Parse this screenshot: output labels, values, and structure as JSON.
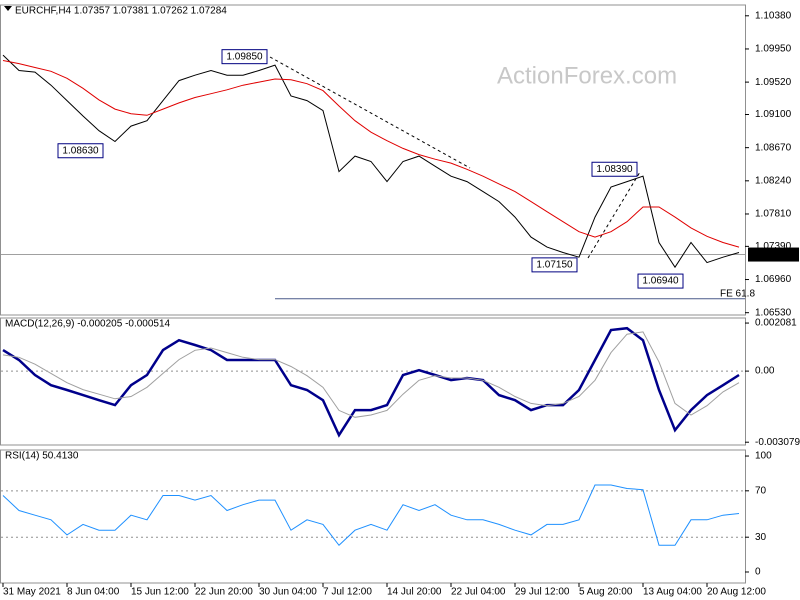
{
  "chart_data": [
    {
      "type": "line",
      "title": "EURCHF,H4  1.07357 1.07381 1.07262 1.07284",
      "watermark": "ActionForex.com",
      "categories": [
        "31 May 2021",
        null,
        null,
        null,
        "8 Jun 04:00",
        null,
        null,
        null,
        "15 Jun 12:00",
        null,
        null,
        null,
        "22 Jun 20:00",
        null,
        null,
        null,
        "30 Jun 04:00",
        null,
        null,
        null,
        "7 Jul 12:00",
        null,
        null,
        null,
        "14 Jul 20:00",
        null,
        null,
        null,
        "22 Jul 04:00",
        null,
        null,
        null,
        "29 Jul 12:00",
        null,
        null,
        null,
        "5 Aug 20:00",
        null,
        null,
        null,
        "13 Aug 04:00",
        null,
        null,
        null,
        "20 Aug 12:00",
        null,
        null
      ],
      "ylim": [
        1.065,
        1.1052
      ],
      "yticks": [
        {
          "value": 1.0653,
          "label": "1.06530"
        },
        {
          "value": 1.0696,
          "label": "1.06960"
        },
        {
          "value": 1.0739,
          "label": "1.07390"
        },
        {
          "value": 1.0781,
          "label": "1.07810"
        },
        {
          "value": 1.0824,
          "label": "1.08240"
        },
        {
          "value": 1.0867,
          "label": "1.08670"
        },
        {
          "value": 1.091,
          "label": "1.09100"
        },
        {
          "value": 1.0952,
          "label": "1.09520"
        },
        {
          "value": 1.0995,
          "label": "1.09950"
        },
        {
          "value": 1.1038,
          "label": "1.10380"
        }
      ],
      "series": [
        {
          "color": "#000000",
          "values": [
            1.0987,
            1.0967,
            1.0965,
            1.0948,
            1.0928,
            1.0908,
            1.0889,
            1.0875,
            1.0895,
            1.0902,
            1.0928,
            1.0954,
            1.0961,
            1.0967,
            1.0961,
            1.0961,
            1.0967,
            1.0974,
            1.0934,
            1.0928,
            1.0915,
            1.0836,
            1.0856,
            1.0849,
            1.0823,
            1.0849,
            1.0856,
            1.0843,
            1.083,
            1.0823,
            1.081,
            1.0797,
            1.0777,
            1.0751,
            1.0738,
            1.0731,
            1.0725,
            1.0777,
            1.0816,
            1.0823,
            1.083,
            1.0744,
            1.0712,
            1.0744,
            1.0718,
            1.0725,
            1.0731
          ]
        },
        {
          "color": "#e00000",
          "values": [
            1.098,
            1.0976,
            1.0971,
            1.0966,
            1.0957,
            1.0944,
            1.0929,
            1.0917,
            1.0911,
            1.0909,
            1.0917,
            1.0925,
            1.0932,
            1.0937,
            1.0942,
            1.0948,
            1.0952,
            1.0956,
            1.0955,
            1.095,
            1.0941,
            1.0921,
            1.0902,
            1.0887,
            1.0876,
            1.0866,
            1.0858,
            1.0852,
            1.0847,
            1.0839,
            1.083,
            1.082,
            1.081,
            1.0797,
            1.0784,
            1.0771,
            1.0758,
            1.0751,
            1.0758,
            1.0771,
            1.079,
            1.079,
            1.0777,
            1.0763,
            1.0752,
            1.0744,
            1.0738
          ]
        }
      ],
      "last_price": {
        "value": 1.07284,
        "label": "1.07284"
      },
      "annotations": [
        {
          "value": 1.0985,
          "label": "1.09850"
        },
        {
          "value": 1.0863,
          "label": "1.08630"
        },
        {
          "value": 1.0715,
          "label": "1.07150"
        },
        {
          "value": 1.0839,
          "label": "1.08390"
        },
        {
          "value": 1.0694,
          "label": "1.06940"
        }
      ],
      "fe_level": {
        "value": 1.0671,
        "label": "FE 61.8"
      }
    },
    {
      "type": "line",
      "title": "MACD(12,26,9) -0.000205 -0.000514",
      "ylim": [
        -0.0032,
        0.0023
      ],
      "yticks": [
        -0.003079,
        {
          "value": 0,
          "label": "0.00"
        },
        0.002081
      ],
      "levels": [
        0
      ],
      "series": [
        {
          "color": "#00008b",
          "values": [
            0.00091,
            0.00048,
            -0.00017,
            -0.00061,
            -0.00082,
            -0.00104,
            -0.00126,
            -0.00147,
            -0.00061,
            -0.00017,
            0.00091,
            0.00134,
            0.00113,
            0.00091,
            0.00048,
            0.00048,
            0.00048,
            0.00048,
            -0.00061,
            -0.00082,
            -0.00126,
            -0.00277,
            -0.00169,
            -0.00169,
            -0.00147,
            -0.00017,
            4e-05,
            -0.00017,
            -0.00039,
            -0.0003,
            -0.00039,
            -0.00104,
            -0.00126,
            -0.00169,
            -0.00147,
            -0.00147,
            -0.00082,
            0.00048,
            0.00178,
            0.00186,
            0.00134,
            -0.00082,
            -0.00256,
            -0.00169,
            -0.00104,
            -0.00061,
            -0.00017
          ]
        },
        {
          "color": "#a0a0a0",
          "values": [
            0.0007,
            0.0006,
            0.0003,
            -0.0001,
            -0.0005,
            -0.0008,
            -0.001,
            -0.0012,
            -0.0011,
            -0.0007,
            -0.0001,
            0.0005,
            0.0009,
            0.001,
            0.0008,
            0.0006,
            0.0005,
            0.0005,
            0.0002,
            -0.0002,
            -0.0007,
            -0.0017,
            -0.002,
            -0.0019,
            -0.0017,
            -0.001,
            -0.0004,
            -0.0002,
            -0.0003,
            -0.0003,
            -0.0004,
            -0.0007,
            -0.0011,
            -0.0014,
            -0.0015,
            -0.0014,
            -0.0011,
            -0.0004,
            0.0008,
            0.0016,
            0.0017,
            0.0004,
            -0.0014,
            -0.0019,
            -0.0015,
            -0.0009,
            -0.0005
          ]
        }
      ]
    },
    {
      "type": "line",
      "title": "RSI(14) 50.4130",
      "ylim": [
        -9.5,
        105.2
      ],
      "yticks": [
        0,
        30,
        70,
        100
      ],
      "levels": [
        30,
        70
      ],
      "series": [
        {
          "color": "#1e90ff",
          "values": [
            66,
            53,
            49,
            45,
            32,
            41,
            36,
            36,
            49,
            45,
            66,
            66,
            62,
            66,
            53,
            58,
            62,
            62,
            36,
            45,
            41,
            23,
            36,
            41,
            36,
            58,
            53,
            58,
            49,
            45,
            45,
            41,
            36,
            32,
            41,
            41,
            45,
            75,
            75,
            72,
            71,
            23,
            23,
            45,
            45,
            49,
            50.4
          ]
        }
      ]
    }
  ]
}
